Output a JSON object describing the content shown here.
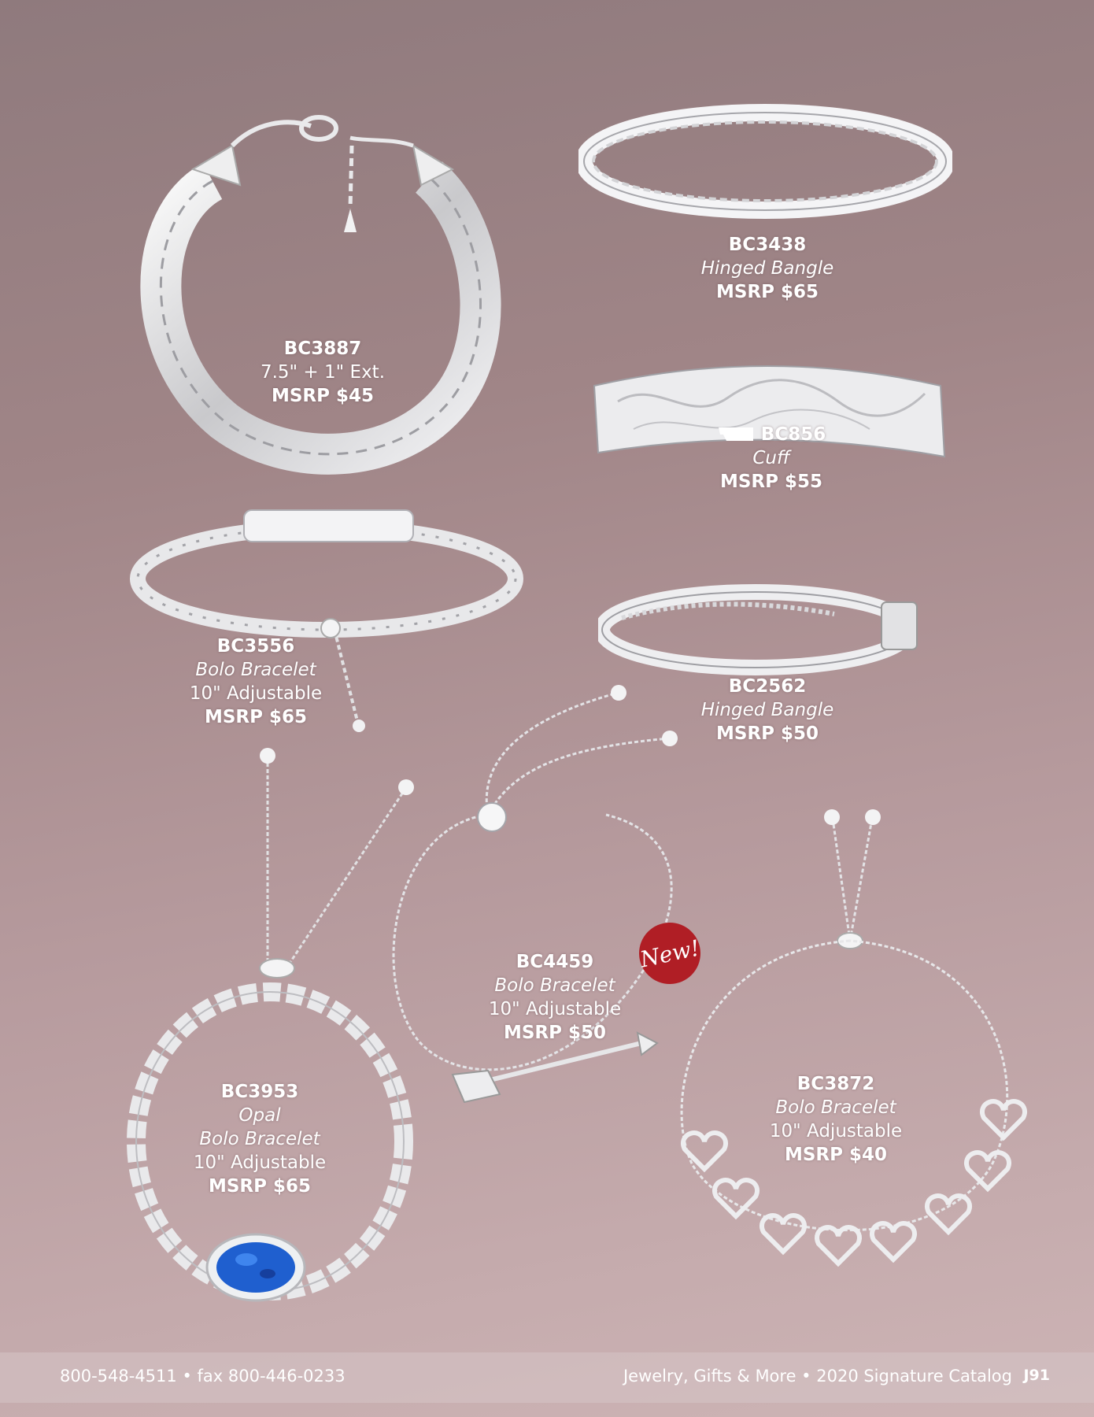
{
  "products": [
    {
      "sku": "BC3887",
      "size": "7.5\" + 1\" Ext.",
      "price": "MSRP $45"
    },
    {
      "sku": "BC3438",
      "desc": "Hinged Bangle",
      "price": "MSRP $65"
    },
    {
      "sku": "BC856",
      "desc": "Cuff",
      "price": "MSRP $55"
    },
    {
      "sku": "BC3556",
      "desc": "Bolo Bracelet",
      "size": "10\" Adjustable",
      "price": "MSRP $65"
    },
    {
      "sku": "BC2562",
      "desc": "Hinged Bangle",
      "price": "MSRP $50"
    },
    {
      "sku": "BC4459",
      "desc": "Bolo Bracelet",
      "size": "10\" Adjustable",
      "price": "MSRP $50"
    },
    {
      "sku": "BC3953",
      "desc": "Opal",
      "desc2": "Bolo Bracelet",
      "size": "10\" Adjustable",
      "price": "MSRP $65"
    },
    {
      "sku": "BC3872",
      "desc": "Bolo Bracelet",
      "size": "10\" Adjustable",
      "price": "MSRP $40"
    }
  ],
  "badge": {
    "new_label": "New!"
  },
  "footer": {
    "contact": "800-548-4511 • fax 800-446-0233",
    "catalog": "Jewelry, Gifts & More • 2020 Signature Catalog",
    "page_number": "J91"
  },
  "colors": {
    "silver": "#e6e6e8",
    "badge_red": "#b01e25",
    "opal_blue": "#1f5fcf"
  }
}
